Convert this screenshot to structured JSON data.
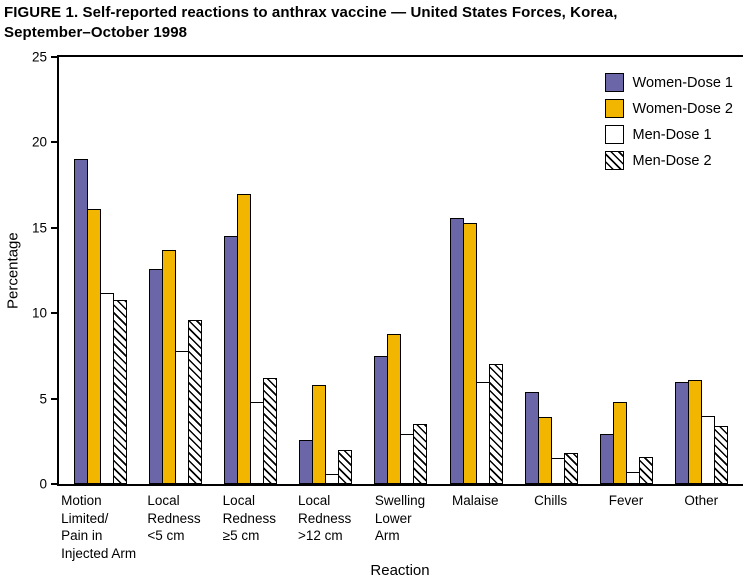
{
  "chart_data": {
    "type": "bar",
    "title": "FIGURE 1. Self-reported reactions to anthrax vaccine — United States Forces, Korea, September–October 1998",
    "title_lines": [
      "FIGURE 1. Self-reported reactions to anthrax vaccine — United States Forces, Korea,",
      "September–October 1998"
    ],
    "xlabel": "Reaction",
    "ylabel": "Percentage",
    "ylim": [
      0,
      25
    ],
    "yticks": [
      0,
      5,
      10,
      15,
      20,
      25
    ],
    "grid": false,
    "legend_position": "top-right",
    "categories": [
      "Motion Limited/Pain in Injected Arm",
      "Local Redness <5 cm",
      "Local Redness ≥5 cm",
      "Local Redness >12 cm",
      "Swelling Lower Arm",
      "Malaise",
      "Chills",
      "Fever",
      "Other"
    ],
    "category_lines": [
      [
        "Motion",
        "Limited/",
        "Pain in",
        "Injected Arm"
      ],
      [
        "Local",
        "Redness",
        "<5 cm"
      ],
      [
        "Local",
        "Redness",
        "≥5 cm"
      ],
      [
        "Local",
        "Redness",
        ">12 cm"
      ],
      [
        "Swelling",
        "Lower",
        "Arm"
      ],
      [
        "Malaise"
      ],
      [
        "Chills"
      ],
      [
        "Fever"
      ],
      [
        "Other"
      ]
    ],
    "series": [
      {
        "name": "Women-Dose 1",
        "style": "solid",
        "color": "#6B66A8",
        "values": [
          19.0,
          12.6,
          14.5,
          2.6,
          7.5,
          15.6,
          5.4,
          2.9,
          6.0
        ]
      },
      {
        "name": "Women-Dose 2",
        "style": "solid",
        "color": "#F2B600",
        "values": [
          16.1,
          13.7,
          17.0,
          5.8,
          8.8,
          15.3,
          3.9,
          4.8,
          6.1
        ]
      },
      {
        "name": "Men-Dose 1",
        "style": "outline",
        "color": "#FFFFFF",
        "values": [
          11.2,
          7.8,
          4.8,
          0.6,
          2.9,
          6.0,
          1.5,
          0.7,
          4.0
        ]
      },
      {
        "name": "Men-Dose 2",
        "style": "hatched",
        "color": "#FFFFFF",
        "values": [
          10.8,
          9.6,
          6.2,
          2.0,
          3.5,
          7.0,
          1.8,
          1.6,
          3.4
        ]
      }
    ]
  }
}
